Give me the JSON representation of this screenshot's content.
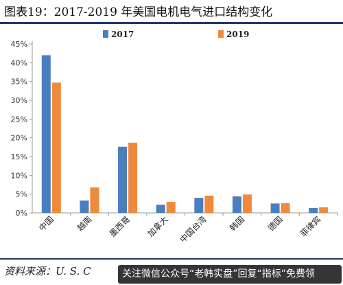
{
  "header": {
    "title": "图表19：2017-2019 年美国电机电气进口结构变化"
  },
  "footer": {
    "source": "资料来源：U. S. C",
    "watermark_text": "关注微信公众号“老韩实盘”回复“指标”免费领"
  },
  "colors": {
    "series_2017": "#4a7ebf",
    "series_2019": "#ee8a3c",
    "rule": "#1e3a6b",
    "axis": "#999999"
  },
  "chart_data": {
    "type": "bar",
    "categories": [
      "中国",
      "越南",
      "墨西哥",
      "加拿大",
      "中国台湾",
      "韩国",
      "德国",
      "菲律宾"
    ],
    "series": [
      {
        "name": "2017",
        "values": [
          42.0,
          3.3,
          17.6,
          2.2,
          4.0,
          4.4,
          2.5,
          1.3
        ]
      },
      {
        "name": "2019",
        "values": [
          34.7,
          6.8,
          18.7,
          2.9,
          4.6,
          4.9,
          2.6,
          1.5
        ]
      }
    ],
    "y_ticks": [
      "0%",
      "5%",
      "10%",
      "15%",
      "20%",
      "25%",
      "30%",
      "35%",
      "40%",
      "45%"
    ],
    "ylim": [
      0,
      45
    ],
    "legend_position": "top",
    "grid": false
  }
}
